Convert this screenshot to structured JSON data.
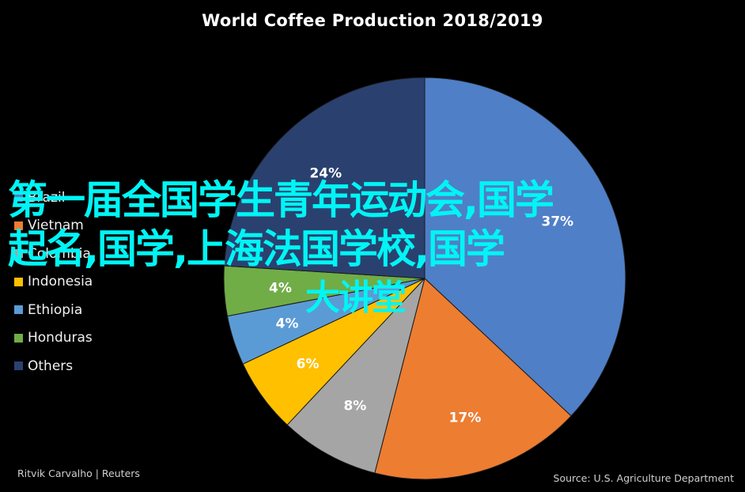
{
  "chart_data": {
    "type": "pie",
    "title": "World Coffee Production 2018/2019",
    "categories": [
      "Brazil",
      "Vietnam",
      "Colombia",
      "Indonesia",
      "Ethiopia",
      "Honduras",
      "Others"
    ],
    "values": [
      37,
      17,
      8,
      6,
      4,
      4,
      24
    ],
    "value_labels": [
      "37%",
      "17%",
      "8%",
      "6%",
      "4%",
      "4%",
      "24%"
    ],
    "colors": [
      "#4f7fc7",
      "#ed7d31",
      "#a5a5a5",
      "#ffc000",
      "#5b9bd5",
      "#70ad47",
      "#2a4170"
    ],
    "legend_position": "left",
    "start_angle": "top",
    "direction": "clockwise"
  },
  "legend": {
    "items": [
      {
        "label": "Brazil",
        "color": "#4f7fc7"
      },
      {
        "label": "Vietnam",
        "color": "#ed7d31"
      },
      {
        "label": "Colombia",
        "color": "#a5a5a5"
      },
      {
        "label": "Indonesia",
        "color": "#ffc000"
      },
      {
        "label": "Ethiopia",
        "color": "#5b9bd5"
      },
      {
        "label": "Honduras",
        "color": "#70ad47"
      },
      {
        "label": "Others",
        "color": "#2a4170"
      }
    ]
  },
  "footer": {
    "credit": "Ritvik Carvalho | Reuters",
    "source": "Source: U.S. Agriculture Department"
  },
  "overlay": {
    "line1": "第一届全国学生青年运动会,国学",
    "line2": "起名,国学,上海法国学校,国学",
    "line3": "大讲堂",
    "color": "#00f5f5"
  }
}
